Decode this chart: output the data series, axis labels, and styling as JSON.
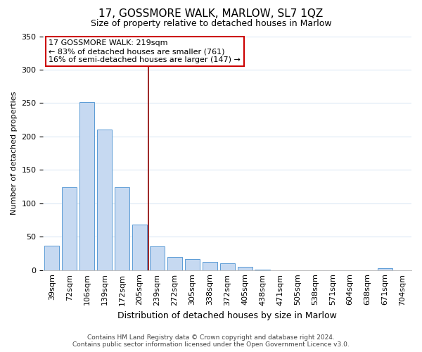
{
  "title": "17, GOSSMORE WALK, MARLOW, SL7 1QZ",
  "subtitle": "Size of property relative to detached houses in Marlow",
  "xlabel": "Distribution of detached houses by size in Marlow",
  "ylabel": "Number of detached properties",
  "bar_labels": [
    "39sqm",
    "72sqm",
    "106sqm",
    "139sqm",
    "172sqm",
    "205sqm",
    "239sqm",
    "272sqm",
    "305sqm",
    "338sqm",
    "372sqm",
    "405sqm",
    "438sqm",
    "471sqm",
    "505sqm",
    "538sqm",
    "571sqm",
    "604sqm",
    "638sqm",
    "671sqm",
    "704sqm"
  ],
  "bar_values": [
    37,
    124,
    252,
    210,
    124,
    68,
    35,
    20,
    16,
    12,
    10,
    5,
    1,
    0,
    0,
    0,
    0,
    0,
    0,
    3,
    0
  ],
  "bar_color": "#c6d9f1",
  "bar_edge_color": "#5a9bd5",
  "annotation_title": "17 GOSSMORE WALK: 219sqm",
  "annotation_line1": "← 83% of detached houses are smaller (761)",
  "annotation_line2": "16% of semi-detached houses are larger (147) →",
  "vline_x": 6.0,
  "vline_color": "#8b0000",
  "annotation_box_color": "#ffffff",
  "annotation_box_edge": "#cc0000",
  "ylim": [
    0,
    350
  ],
  "yticks": [
    0,
    50,
    100,
    150,
    200,
    250,
    300,
    350
  ],
  "footer_line1": "Contains HM Land Registry data © Crown copyright and database right 2024.",
  "footer_line2": "Contains public sector information licensed under the Open Government Licence v3.0.",
  "background_color": "#ffffff",
  "grid_color": "#dce9f5",
  "title_fontsize": 11,
  "subtitle_fontsize": 9,
  "xlabel_fontsize": 9,
  "ylabel_fontsize": 8,
  "tick_fontsize": 8,
  "annotation_fontsize": 8,
  "footer_fontsize": 6.5
}
